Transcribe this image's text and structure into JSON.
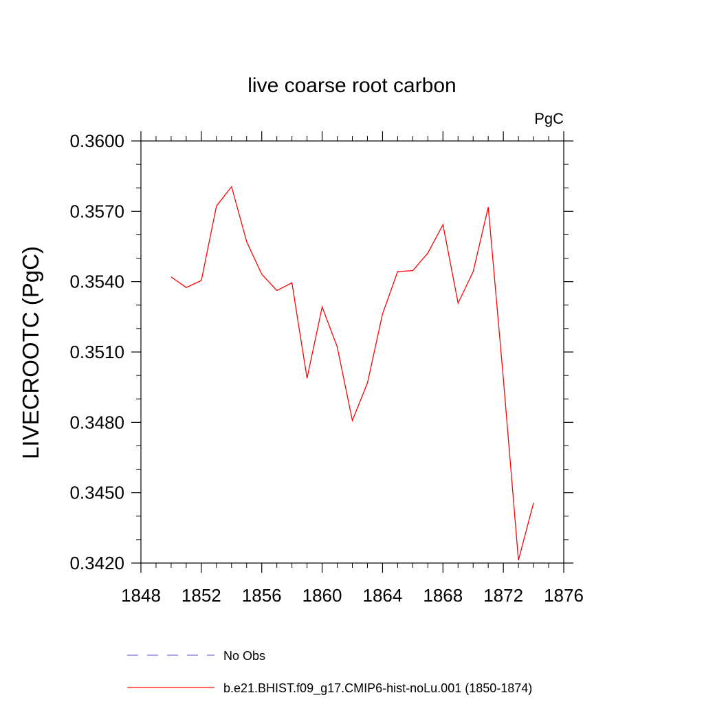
{
  "chart_data": {
    "type": "line",
    "title": "live coarse root carbon",
    "units": "PgC",
    "ylabel": "LIVECROOTC  (PgC)",
    "xlabel": "",
    "xlim": [
      1848,
      1876
    ],
    "ylim": [
      0.342,
      0.36
    ],
    "xticks": [
      1848,
      1852,
      1856,
      1860,
      1864,
      1868,
      1872,
      1876
    ],
    "xtick_labels": [
      "1848",
      "1852",
      "1856",
      "1860",
      "1864",
      "1868",
      "1872",
      "1876"
    ],
    "yticks": [
      0.342,
      0.345,
      0.348,
      0.351,
      0.354,
      0.357,
      0.36
    ],
    "ytick_labels": [
      "0.3420",
      "0.3450",
      "0.3480",
      "0.3510",
      "0.3540",
      "0.3570",
      "0.3600"
    ],
    "grid": false,
    "legend_position": "bottom",
    "series": [
      {
        "name": "b.e21.BHIST.f09_g17.CMIP6-hist-noLu.001 (1850-1874)",
        "color": "#ff0000",
        "style": "solid",
        "x": [
          1850,
          1851,
          1852,
          1853,
          1854,
          1855,
          1856,
          1857,
          1858,
          1859,
          1860,
          1861,
          1862,
          1863,
          1864,
          1865,
          1866,
          1867,
          1868,
          1869,
          1870,
          1871,
          1872,
          1873,
          1874
        ],
        "values": [
          0.3542,
          0.35375,
          0.35405,
          0.35722,
          0.35805,
          0.3557,
          0.35432,
          0.35362,
          0.35395,
          0.34988,
          0.35292,
          0.35122,
          0.34808,
          0.34968,
          0.35262,
          0.35443,
          0.35447,
          0.35522,
          0.35643,
          0.35308,
          0.35442,
          0.35718,
          0.34988,
          0.34212,
          0.34457
        ]
      }
    ],
    "legend": [
      {
        "label": "No Obs",
        "color": "#7b68d6",
        "style": "dashed"
      },
      {
        "label": "b.e21.BHIST.f09_g17.CMIP6-hist-noLu.001 (1850-1874)",
        "color": "#ff0000",
        "style": "solid"
      }
    ]
  }
}
